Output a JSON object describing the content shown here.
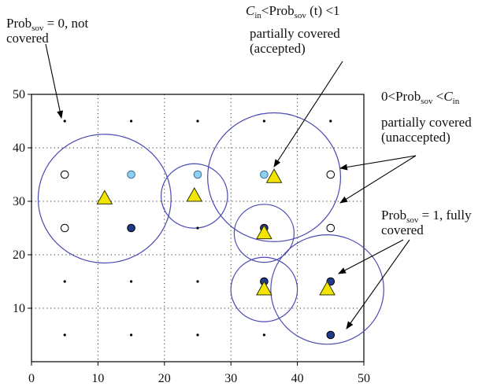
{
  "colors": {
    "axis": "#000000",
    "grid": "#333333",
    "circle_stroke": "#4a4ab0",
    "triangle_fill": "#f2e600",
    "triangle_stroke": "#333300",
    "dot_light": "#8fd0f0",
    "dot_dark": "#223a8c",
    "dot_empty": "#ffffff",
    "arrow": "#000000"
  },
  "chart_data": {
    "type": "scatter",
    "xlim": [
      0,
      50
    ],
    "ylim": [
      0,
      50
    ],
    "xticks": [
      0,
      10,
      20,
      30,
      40,
      50
    ],
    "yticks": [
      10,
      20,
      30,
      40,
      50
    ],
    "grid": true,
    "grid_points": [
      {
        "x": 5,
        "y": 45,
        "state": "not_covered"
      },
      {
        "x": 15,
        "y": 45,
        "state": "not_covered"
      },
      {
        "x": 25,
        "y": 45,
        "state": "not_covered"
      },
      {
        "x": 35,
        "y": 45,
        "state": "not_covered"
      },
      {
        "x": 45,
        "y": 45,
        "state": "not_covered"
      },
      {
        "x": 5,
        "y": 35,
        "state": "unaccepted"
      },
      {
        "x": 15,
        "y": 35,
        "state": "accepted"
      },
      {
        "x": 25,
        "y": 35,
        "state": "accepted"
      },
      {
        "x": 35,
        "y": 35,
        "state": "accepted"
      },
      {
        "x": 45,
        "y": 35,
        "state": "unaccepted"
      },
      {
        "x": 5,
        "y": 25,
        "state": "unaccepted"
      },
      {
        "x": 15,
        "y": 25,
        "state": "fully_covered"
      },
      {
        "x": 25,
        "y": 25,
        "state": "not_covered"
      },
      {
        "x": 35,
        "y": 25,
        "state": "fully_covered"
      },
      {
        "x": 45,
        "y": 25,
        "state": "unaccepted"
      },
      {
        "x": 5,
        "y": 15,
        "state": "not_covered"
      },
      {
        "x": 15,
        "y": 15,
        "state": "not_covered"
      },
      {
        "x": 25,
        "y": 15,
        "state": "not_covered"
      },
      {
        "x": 35,
        "y": 15,
        "state": "fully_covered"
      },
      {
        "x": 45,
        "y": 15,
        "state": "fully_covered"
      },
      {
        "x": 5,
        "y": 5,
        "state": "not_covered"
      },
      {
        "x": 15,
        "y": 5,
        "state": "not_covered"
      },
      {
        "x": 25,
        "y": 5,
        "state": "not_covered"
      },
      {
        "x": 35,
        "y": 5,
        "state": "not_covered"
      },
      {
        "x": 45,
        "y": 5,
        "state": "fully_covered"
      }
    ],
    "sensors": [
      {
        "x": 11,
        "y": 30.5
      },
      {
        "x": 24.5,
        "y": 31
      },
      {
        "x": 36.5,
        "y": 34.5
      },
      {
        "x": 35,
        "y": 24
      },
      {
        "x": 35,
        "y": 13.5
      },
      {
        "x": 44.5,
        "y": 13.5
      }
    ],
    "ranges": [
      {
        "cx": 11,
        "cy": 30.5,
        "r": 10
      },
      {
        "cx": 24.5,
        "cy": 31,
        "r": 5
      },
      {
        "cx": 36.5,
        "cy": 34.5,
        "r": 10
      },
      {
        "cx": 35,
        "cy": 24,
        "r": 4.5
      },
      {
        "cx": 35,
        "cy": 13.5,
        "r": 5
      },
      {
        "cx": 44.5,
        "cy": 13.5,
        "r": 8.5
      }
    ]
  },
  "annotations": {
    "not_covered": {
      "line1_prefix": "Prob",
      "line1_sub": "sov",
      "line1_suffix": " = 0, not",
      "line2": "covered"
    },
    "accepted": {
      "c": "C",
      "c_sub": "in",
      "lt1": "<Prob",
      "prob_sub": "sov",
      "t": " (t) ",
      "lt2": "<1",
      "line2": "partially covered",
      "line3": "(accepted)"
    },
    "unaccepted": {
      "zero": "0<Prob",
      "prob_sub": "sov",
      "lt": " <",
      "c": "C",
      "c_sub": "in",
      "line2": "partially covered",
      "line3": "(unaccepted)"
    },
    "fully": {
      "line1_prefix": "Prob",
      "line1_sub": "sov",
      "line1_suffix": " = 1, fully",
      "line2": "covered"
    }
  }
}
